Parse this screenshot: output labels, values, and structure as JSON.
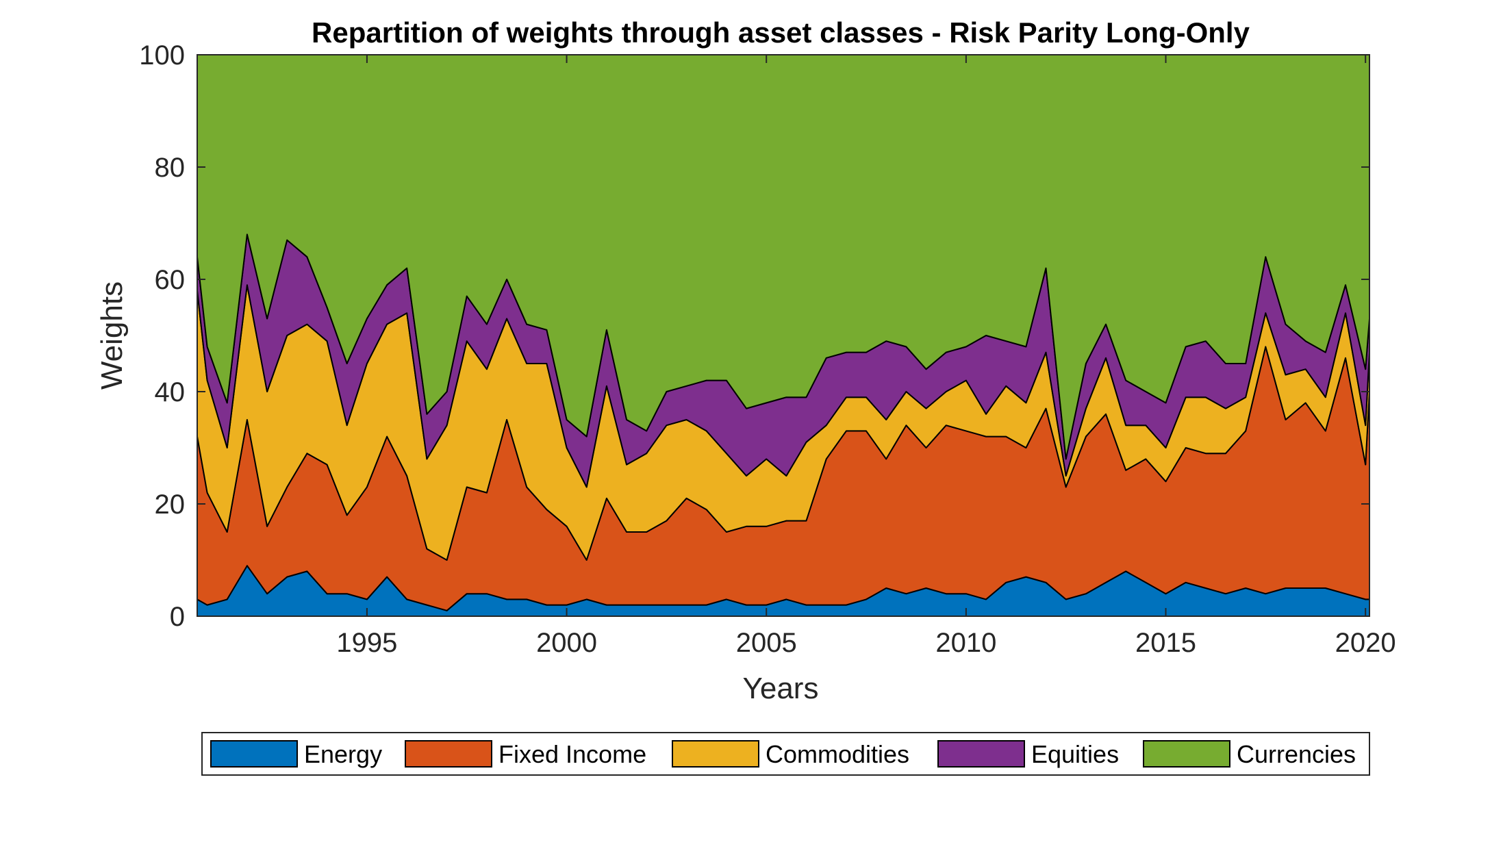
{
  "chart_data": {
    "type": "area",
    "stacked": true,
    "title": "Repartition of weights through asset classes - Risk Parity Long-Only",
    "xlabel": "Years",
    "ylabel": "Weights",
    "xlim": [
      1990.75,
      2020.1
    ],
    "ylim": [
      0,
      100
    ],
    "xticks": [
      1995,
      2000,
      2005,
      2010,
      2015,
      2020
    ],
    "yticks": [
      0,
      20,
      40,
      60,
      80,
      100
    ],
    "grid": false,
    "legend_position": "bottom",
    "x": [
      1990.75,
      1991.0,
      1991.5,
      1992.0,
      1992.5,
      1993.0,
      1993.5,
      1994.0,
      1994.5,
      1995.0,
      1995.5,
      1996.0,
      1996.5,
      1997.0,
      1997.5,
      1998.0,
      1998.5,
      1999.0,
      1999.5,
      2000.0,
      2000.5,
      2001.0,
      2001.5,
      2002.0,
      2002.5,
      2003.0,
      2003.5,
      2004.0,
      2004.5,
      2005.0,
      2005.5,
      2006.0,
      2006.5,
      2007.0,
      2007.5,
      2008.0,
      2008.5,
      2009.0,
      2009.5,
      2010.0,
      2010.5,
      2011.0,
      2011.5,
      2012.0,
      2012.5,
      2013.0,
      2013.5,
      2014.0,
      2014.5,
      2015.0,
      2015.5,
      2016.0,
      2016.5,
      2017.0,
      2017.5,
      2018.0,
      2018.5,
      2019.0,
      2019.5,
      2020.0,
      2020.1
    ],
    "series": [
      {
        "name": "Energy",
        "color": "#0072BD",
        "values": [
          3,
          2,
          3,
          9,
          4,
          7,
          8,
          4,
          4,
          3,
          7,
          3,
          2,
          1,
          4,
          4,
          3,
          3,
          2,
          2,
          3,
          2,
          2,
          2,
          2,
          2,
          2,
          3,
          2,
          2,
          3,
          2,
          2,
          2,
          3,
          5,
          4,
          5,
          4,
          4,
          3,
          6,
          7,
          6,
          3,
          4,
          6,
          8,
          6,
          4,
          6,
          5,
          4,
          5,
          4,
          5,
          5,
          5,
          4,
          3,
          3
        ]
      },
      {
        "name": "Fixed Income",
        "color": "#D95319",
        "values": [
          29,
          20,
          12,
          26,
          12,
          16,
          21,
          23,
          14,
          20,
          25,
          22,
          10,
          9,
          19,
          18,
          32,
          20,
          17,
          14,
          7,
          19,
          13,
          13,
          15,
          19,
          17,
          12,
          14,
          14,
          14,
          15,
          26,
          31,
          30,
          23,
          30,
          25,
          30,
          29,
          29,
          26,
          23,
          31,
          20,
          28,
          30,
          18,
          22,
          20,
          24,
          24,
          25,
          28,
          44,
          30,
          33,
          28,
          42,
          24,
          37
        ]
      },
      {
        "name": "Commodities",
        "color": "#EDB120",
        "values": [
          26,
          20,
          15,
          24,
          24,
          27,
          23,
          22,
          16,
          22,
          20,
          29,
          16,
          24,
          26,
          22,
          18,
          22,
          26,
          14,
          13,
          20,
          12,
          14,
          17,
          14,
          14,
          14,
          9,
          12,
          8,
          14,
          6,
          6,
          6,
          7,
          6,
          7,
          6,
          9,
          4,
          9,
          8,
          10,
          2,
          5,
          10,
          8,
          6,
          6,
          9,
          10,
          8,
          6,
          6,
          8,
          6,
          6,
          8,
          7,
          7
        ]
      },
      {
        "name": "Equities",
        "color": "#7E2F8E",
        "values": [
          6,
          6,
          8,
          9,
          13,
          17,
          12,
          6,
          11,
          8,
          7,
          8,
          8,
          6,
          8,
          8,
          7,
          7,
          6,
          5,
          9,
          10,
          8,
          4,
          6,
          6,
          9,
          13,
          12,
          10,
          14,
          8,
          12,
          8,
          8,
          14,
          8,
          7,
          7,
          6,
          14,
          8,
          10,
          15,
          3,
          8,
          6,
          8,
          6,
          8,
          9,
          10,
          8,
          6,
          10,
          9,
          5,
          8,
          5,
          10,
          6
        ]
      },
      {
        "name": "Currencies",
        "color": "#77AC30",
        "values": [
          36,
          52,
          62,
          32,
          47,
          33,
          36,
          45,
          55,
          47,
          41,
          38,
          64,
          60,
          43,
          48,
          40,
          48,
          49,
          65,
          68,
          49,
          65,
          67,
          60,
          59,
          58,
          58,
          63,
          62,
          61,
          61,
          54,
          53,
          53,
          51,
          52,
          56,
          53,
          52,
          50,
          51,
          52,
          38,
          72,
          55,
          48,
          58,
          60,
          62,
          52,
          51,
          55,
          55,
          36,
          48,
          51,
          53,
          41,
          56,
          47
        ]
      }
    ]
  }
}
